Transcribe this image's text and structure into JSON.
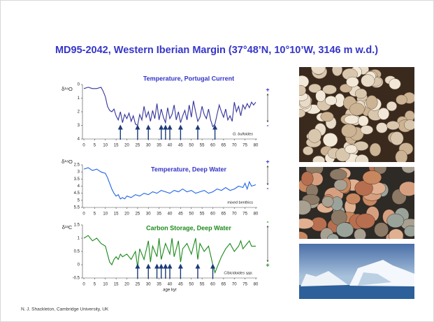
{
  "slide": {
    "title": "MD95-2042, Western Iberian Margin  (37°48’N, 10°10’W, 3146 m w.d.)",
    "credit": "N. J. Shackleton, Cambridge University, UK"
  },
  "chart_data": [
    {
      "type": "line",
      "title": "Temperature, Portugal Current",
      "ylabel": "δ¹⁸O",
      "annotation": "G. bulloides",
      "color": "#33339c",
      "scale": [
        "+",
        "-"
      ],
      "x": [
        0,
        2,
        4,
        6,
        8,
        9,
        10,
        11,
        12,
        13,
        14,
        15,
        16,
        17,
        18,
        19,
        20,
        21,
        22,
        23,
        24,
        25,
        26,
        27,
        28,
        29,
        30,
        31,
        32,
        33,
        34,
        35,
        36,
        37,
        38,
        39,
        40,
        41,
        42,
        43,
        44,
        45,
        46,
        47,
        48,
        49,
        50,
        51,
        52,
        53,
        54,
        55,
        56,
        57,
        58,
        59,
        60,
        61,
        62,
        63,
        64,
        65,
        66,
        67,
        68,
        69,
        70,
        71,
        72,
        73,
        74,
        75,
        76,
        77,
        78,
        79,
        80
      ],
      "values": [
        0.3,
        0.2,
        0.3,
        0.3,
        0.2,
        0.5,
        0.9,
        1.6,
        1.9,
        2.0,
        1.8,
        2.3,
        2.6,
        2.0,
        2.8,
        2.2,
        2.5,
        2.1,
        2.7,
        2.3,
        2.9,
        3.0,
        2.2,
        2.6,
        1.6,
        2.4,
        2.0,
        2.7,
        1.9,
        2.5,
        1.4,
        2.6,
        1.8,
        2.4,
        2.8,
        1.7,
        2.5,
        2.2,
        1.5,
        2.6,
        2.0,
        2.8,
        2.3,
        1.9,
        2.6,
        1.5,
        2.4,
        1.2,
        2.0,
        2.7,
        2.4,
        1.6,
        2.2,
        2.5,
        1.8,
        2.6,
        3.1,
        2.9,
        2.2,
        1.5,
        2.0,
        2.4,
        1.8,
        2.6,
        2.3,
        2.7,
        1.3,
        2.0,
        1.6,
        2.3,
        1.5,
        1.8,
        1.4,
        1.7,
        1.3,
        1.5,
        1.3
      ],
      "arrows": [
        17,
        25,
        30,
        36,
        38,
        40,
        45,
        53,
        61
      ],
      "xlim": [
        0,
        80
      ],
      "xticks": [
        0,
        5,
        10,
        15,
        20,
        25,
        30,
        35,
        40,
        45,
        50,
        55,
        60,
        65,
        70,
        75,
        80
      ],
      "ylim": [
        4,
        0
      ],
      "yticks": [
        0,
        1,
        2,
        3,
        4
      ]
    },
    {
      "type": "line",
      "title": "Temperature, Deep Water",
      "ylabel": "δ¹⁸O",
      "annotation": "mixed benthics",
      "color": "#1f63e6",
      "scale": [
        "+",
        "-"
      ],
      "x": [
        0,
        2,
        4,
        6,
        8,
        10,
        11,
        12,
        13,
        14,
        15,
        16,
        17,
        18,
        19,
        20,
        22,
        24,
        26,
        28,
        30,
        32,
        34,
        36,
        38,
        40,
        42,
        44,
        46,
        48,
        50,
        52,
        54,
        56,
        58,
        60,
        62,
        64,
        66,
        68,
        70,
        72,
        74,
        75,
        76,
        77,
        78,
        80
      ],
      "values": [
        2.8,
        2.7,
        2.9,
        2.8,
        3.0,
        3.1,
        3.4,
        3.8,
        4.2,
        4.5,
        4.7,
        4.6,
        4.9,
        4.8,
        4.9,
        4.7,
        4.8,
        4.6,
        4.7,
        4.5,
        4.6,
        4.4,
        4.5,
        4.3,
        4.4,
        4.5,
        4.3,
        4.4,
        4.2,
        4.4,
        4.3,
        4.5,
        4.4,
        4.3,
        4.5,
        4.4,
        4.2,
        4.3,
        4.1,
        4.3,
        4.2,
        4.0,
        4.1,
        3.8,
        4.2,
        3.7,
        4.0,
        3.9
      ],
      "xlim": [
        0,
        80
      ],
      "xticks": [
        0,
        5,
        10,
        15,
        20,
        25,
        30,
        35,
        40,
        45,
        50,
        55,
        60,
        65,
        70,
        75,
        80
      ],
      "ylim": [
        5.5,
        2.5
      ],
      "yticks": [
        2.5,
        3,
        3.5,
        4,
        4.5,
        5,
        5.5
      ]
    },
    {
      "type": "line",
      "title": "Carbon Storage, Deep Water",
      "ylabel": "δ¹³C",
      "annotation": "Cibicidoides spp.",
      "xlabel": "age  kyr",
      "color": "#1a8a1a",
      "scale": [
        "-",
        "+"
      ],
      "x": [
        0,
        2,
        4,
        6,
        8,
        10,
        11,
        12,
        13,
        14,
        15,
        16,
        17,
        18,
        20,
        22,
        24,
        25,
        26,
        28,
        30,
        31,
        32,
        34,
        35,
        36,
        38,
        40,
        41,
        42,
        44,
        45,
        46,
        48,
        50,
        52,
        53,
        54,
        56,
        58,
        60,
        61,
        62,
        64,
        66,
        68,
        70,
        72,
        73,
        74,
        76,
        77,
        78,
        80
      ],
      "values": [
        1.0,
        1.1,
        0.9,
        1.0,
        0.8,
        0.7,
        0.4,
        0.1,
        0.0,
        0.2,
        0.3,
        0.2,
        0.4,
        0.3,
        0.4,
        0.2,
        0.5,
        -0.1,
        0.6,
        0.2,
        0.9,
        0.1,
        0.7,
        0.3,
        1.0,
        0.2,
        0.8,
        0.4,
        1.0,
        0.3,
        0.9,
        0.1,
        0.6,
        0.8,
        0.4,
        1.0,
        0.2,
        0.8,
        0.5,
        0.7,
        0.0,
        -0.3,
        -0.1,
        0.3,
        0.6,
        0.8,
        0.5,
        0.7,
        0.9,
        0.6,
        0.8,
        0.9,
        0.7,
        0.7
      ],
      "arrows": [
        25,
        30,
        34,
        36,
        38,
        40,
        45,
        53,
        60
      ],
      "xlim": [
        0,
        80
      ],
      "xticks": [
        0,
        5,
        10,
        15,
        20,
        25,
        30,
        35,
        40,
        45,
        50,
        55,
        60,
        65,
        70,
        75,
        80
      ],
      "ylim": [
        -0.5,
        1.5
      ],
      "yticks": [
        -0.5,
        0,
        0.5,
        1,
        1.5
      ]
    }
  ]
}
